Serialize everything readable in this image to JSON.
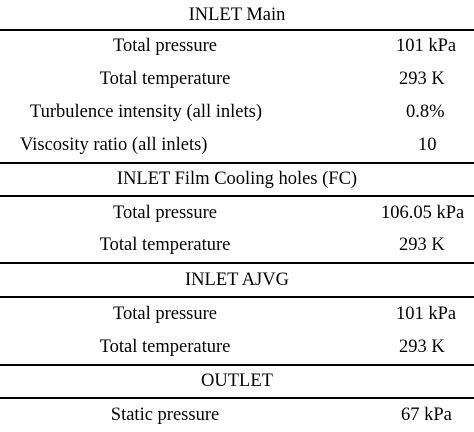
{
  "sections": [
    {
      "header": "INLET Main",
      "rows": [
        {
          "label": "Total pressure",
          "value": "101 kPa"
        },
        {
          "label": "Total temperature",
          "value": "293 K"
        },
        {
          "label": "Turbulence intensity (all inlets)",
          "value": "0.8%"
        },
        {
          "label": "Viscosity ratio (all inlets)",
          "value": "10"
        }
      ]
    },
    {
      "header": "INLET Film Cooling holes (FC)",
      "rows": [
        {
          "label": "Total pressure",
          "value": "106.05 kPa"
        },
        {
          "label": "Total temperature",
          "value": "293 K"
        }
      ]
    },
    {
      "header": "INLET AJVG",
      "rows": [
        {
          "label": "Total pressure",
          "value": "101 kPa"
        },
        {
          "label": "Total temperature",
          "value": "293 K"
        }
      ]
    },
    {
      "header": "OUTLET",
      "rows": [
        {
          "label": "Static pressure",
          "value": "67 kPa"
        }
      ]
    }
  ]
}
